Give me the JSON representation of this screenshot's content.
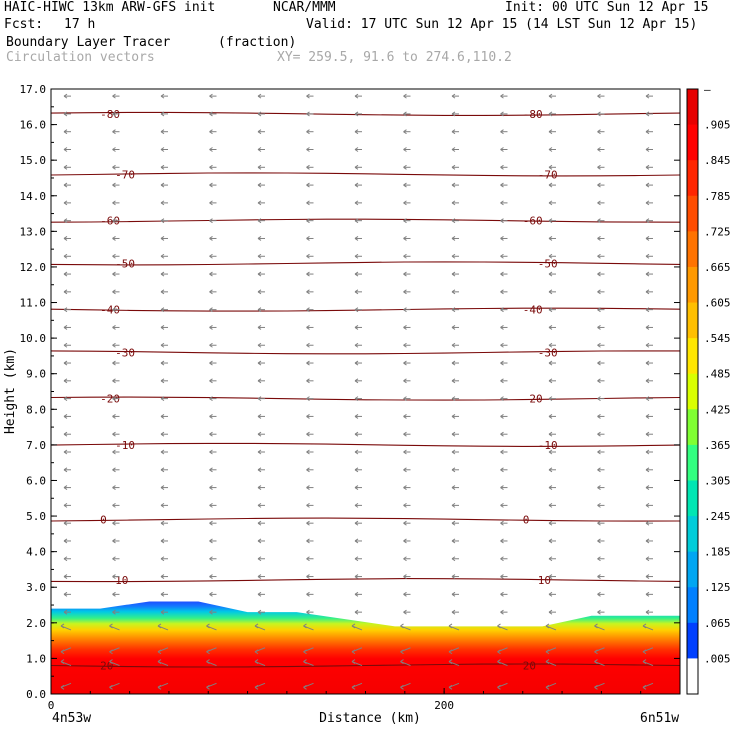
{
  "header": {
    "model_line": "HAIC-HIWC 13km ARW-GFS init",
    "org": "NCAR/MMM",
    "init": "Init: 00 UTC Sun 12 Apr 15",
    "fcst_label": "Fcst:",
    "fcst_value": "17 h",
    "valid": "Valid: 17 UTC Sun 12 Apr 15 (14 LST Sun 12 Apr 15)",
    "field": "Boundary Layer Tracer",
    "field_units": "(fraction)",
    "overlay": "Circulation vectors",
    "xy": "XY= 259.5, 91.6 to 274.6,110.2"
  },
  "chart_data": {
    "type": "heatmap",
    "xlabel": "Distance (km)",
    "ylabel": "Height (km)",
    "xlim": [
      0,
      320
    ],
    "ylim": [
      0,
      17
    ],
    "x_ticks": [
      "0",
      "200"
    ],
    "y_ticks": [
      "0.0",
      "1.0",
      "2.0",
      "3.0",
      "4.0",
      "5.0",
      "6.0",
      "7.0",
      "8.0",
      "9.0",
      "10.0",
      "11.0",
      "12.0",
      "13.0",
      "14.0",
      "15.0",
      "16.0",
      "17.0"
    ],
    "x_endpoints": [
      "4n53w",
      "6n51w"
    ],
    "colorbar": {
      "labels": [
        "–",
        ".905",
        ".845",
        ".785",
        ".725",
        ".665",
        ".605",
        ".545",
        ".485",
        ".425",
        ".365",
        ".305",
        ".245",
        ".185",
        ".125",
        ".065",
        ".005"
      ],
      "colors": [
        "#e60000",
        "#ff0000",
        "#ff2600",
        "#ff4d00",
        "#ff7300",
        "#ff9900",
        "#ffbf00",
        "#ffe600",
        "#d9ff00",
        "#80ff33",
        "#33ff80",
        "#00e6b3",
        "#00ccd9",
        "#00a6f2",
        "#0080ff",
        "#0040ff",
        "#ffffff"
      ]
    },
    "tracer_top_km": {
      "x": [
        0,
        25,
        50,
        75,
        100,
        125,
        150,
        175,
        200,
        225,
        250,
        275,
        300,
        320
      ],
      "y": [
        2.4,
        2.4,
        2.6,
        2.6,
        2.3,
        2.3,
        2.1,
        1.9,
        1.9,
        1.9,
        1.9,
        2.2,
        2.2,
        2.2
      ]
    },
    "temperature_contours": [
      {
        "label": "20",
        "height_km": 0.8
      },
      {
        "label": "10",
        "height_km": 3.2
      },
      {
        "label": "0",
        "height_km": 4.9
      },
      {
        "label": "-10",
        "height_km": 7.0
      },
      {
        "label": "-20",
        "height_km": 8.3
      },
      {
        "label": "-30",
        "height_km": 9.6
      },
      {
        "label": "-40",
        "height_km": 10.8
      },
      {
        "label": "-50",
        "height_km": 12.1
      },
      {
        "label": "-60",
        "height_km": 13.3
      },
      {
        "label": "-70",
        "height_km": 14.6
      },
      {
        "label": "-80",
        "height_km": 16.3
      }
    ]
  }
}
